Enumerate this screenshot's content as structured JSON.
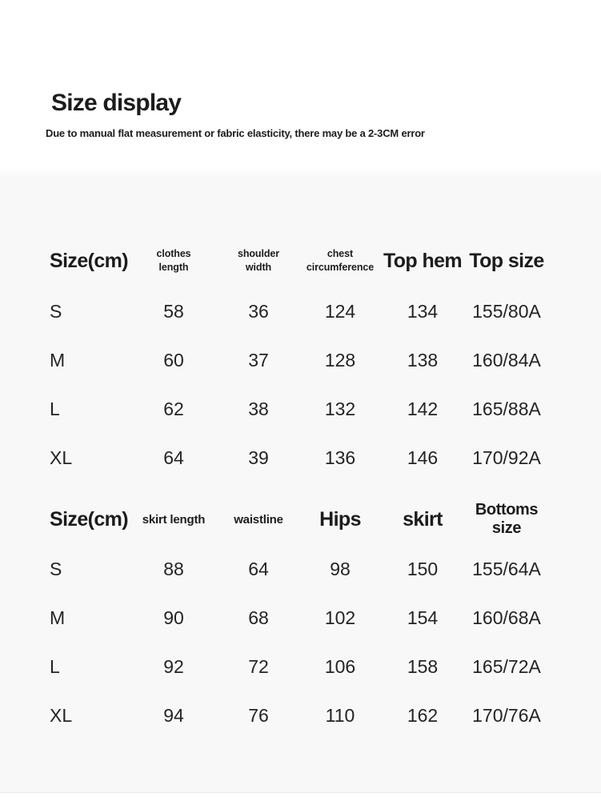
{
  "header": {
    "title": "Size display",
    "subtitle": "Due to manual flat measurement or fabric elasticity, there may be a 2-3CM error"
  },
  "top_table": {
    "columns": [
      "Size(cm)",
      "clothes length",
      "shoulder width",
      "chest circumference",
      "Top hem",
      "Top size"
    ],
    "rows": [
      [
        "S",
        "58",
        "36",
        "124",
        "134",
        "155/80A"
      ],
      [
        "M",
        "60",
        "37",
        "128",
        "138",
        "160/84A"
      ],
      [
        "L",
        "62",
        "38",
        "132",
        "142",
        "165/88A"
      ],
      [
        "XL",
        "64",
        "39",
        "136",
        "146",
        "170/92A"
      ]
    ]
  },
  "bottom_table": {
    "columns": [
      "Size(cm)",
      "skirt length",
      "waistline",
      "Hips",
      "skirt",
      "Bottoms size"
    ],
    "rows": [
      [
        "S",
        "88",
        "64",
        "98",
        "150",
        "155/64A"
      ],
      [
        "M",
        "90",
        "68",
        "102",
        "154",
        "160/68A"
      ],
      [
        "L",
        "92",
        "72",
        "106",
        "158",
        "165/72A"
      ],
      [
        "XL",
        "94",
        "76",
        "110",
        "162",
        "170/76A"
      ]
    ]
  },
  "colors": {
    "section_bg": "#f8f8f8",
    "text": "#242424",
    "heading_text": "#1c1c1c",
    "divider": "#e8e8e8"
  }
}
